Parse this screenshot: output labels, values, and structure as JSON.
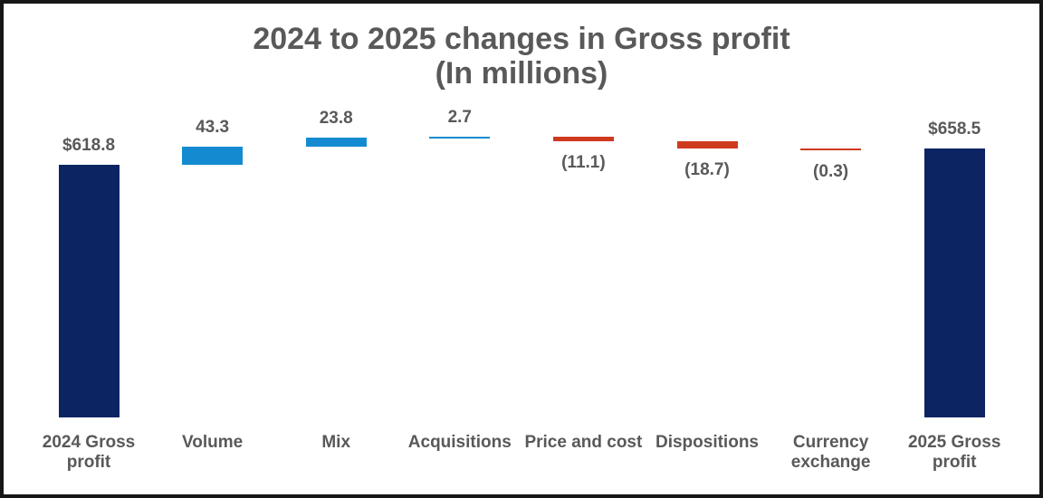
{
  "title": {
    "line1": "2024 to 2025 changes in Gross profit",
    "line2": "(In millions)"
  },
  "chart_data": {
    "type": "bar",
    "subtype": "waterfall",
    "title": "2024 to 2025 changes in Gross profit (In millions)",
    "categories": [
      "2024 Gross profit",
      "Volume",
      "Mix",
      "Acquisitions",
      "Price and cost",
      "Dispositions",
      "Currency exchange",
      "2025 Gross profit"
    ],
    "items": [
      {
        "category": "2024 Gross profit",
        "kind": "total",
        "value": 618.8,
        "display": "$618.8"
      },
      {
        "category": "Volume",
        "kind": "increase",
        "value": 43.3,
        "display": "43.3"
      },
      {
        "category": "Mix",
        "kind": "increase",
        "value": 23.8,
        "display": "23.8"
      },
      {
        "category": "Acquisitions",
        "kind": "increase",
        "value": 2.7,
        "display": "2.7"
      },
      {
        "category": "Price and cost",
        "kind": "decrease",
        "value": -11.1,
        "display": "(11.1)"
      },
      {
        "category": "Dispositions",
        "kind": "decrease",
        "value": -18.7,
        "display": "(18.7)"
      },
      {
        "category": "Currency exchange",
        "kind": "decrease",
        "value": -0.3,
        "display": "(0.3)"
      },
      {
        "category": "2025 Gross profit",
        "kind": "total",
        "value": 658.5,
        "display": "$658.5"
      }
    ],
    "running_totals": [
      618.8,
      662.1,
      685.9,
      688.6,
      677.5,
      658.8,
      658.5,
      658.5
    ],
    "colors": {
      "total": "#0C2461",
      "increase": "#148BD0",
      "decrease": "#CF3A1F",
      "text": "#595959"
    },
    "layout_hints": {
      "gridlines": false,
      "legend": false,
      "x_axis_line": false,
      "value_label_position": "above for totals and increases, below in parentheses for decreases"
    }
  }
}
